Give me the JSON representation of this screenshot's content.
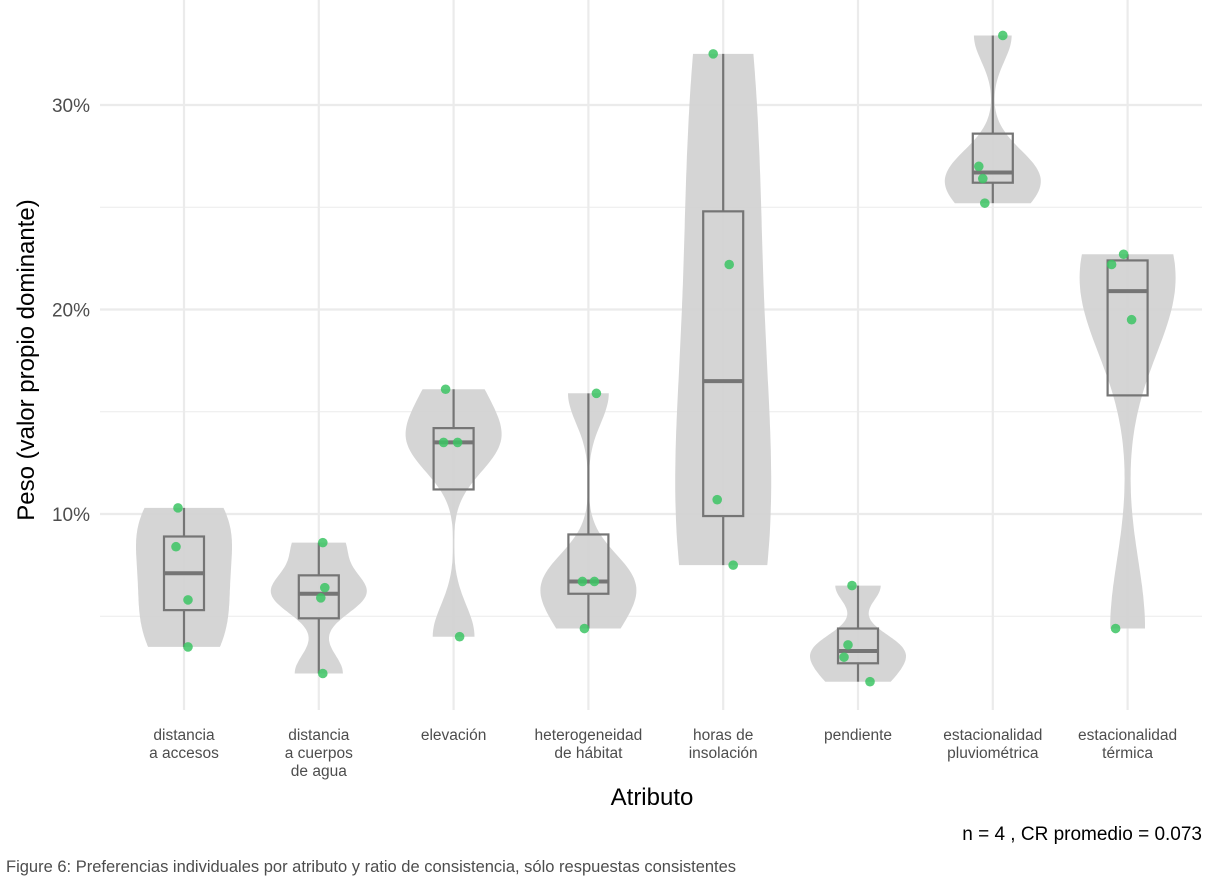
{
  "chart_data": {
    "type": "violin-box-jitter",
    "ylabel": "Peso (valor propio dominante)",
    "xlabel": "Atributo",
    "ylim": [
      0.02,
      0.35
    ],
    "yticks": [
      0.1,
      0.2,
      0.3
    ],
    "ytick_labels": [
      "10%",
      "20%",
      "30%"
    ],
    "grid": true,
    "caption": "n = 4 , CR promedio = 0.073",
    "colors": {
      "violin": "#d3d3d3",
      "box": "#757575",
      "point": "#3cc464",
      "grid": "#ebebeb"
    },
    "categories": [
      {
        "label": [
          "distancia",
          "a accesos"
        ],
        "values": [
          0.103,
          0.084,
          0.058,
          0.035
        ],
        "box": {
          "min": 0.035,
          "q1": 0.053,
          "median": 0.071,
          "q3": 0.089,
          "max": 0.103
        }
      },
      {
        "label": [
          "distancia",
          "a cuerpos",
          "de agua"
        ],
        "values": [
          0.086,
          0.064,
          0.059,
          0.022
        ],
        "box": {
          "min": 0.022,
          "q1": 0.049,
          "median": 0.061,
          "q3": 0.07,
          "max": 0.086
        }
      },
      {
        "label": [
          "elevación"
        ],
        "values": [
          0.161,
          0.135,
          0.135,
          0.04
        ],
        "box": {
          "min": 0.112,
          "q1": 0.112,
          "median": 0.135,
          "q3": 0.142,
          "max": 0.161
        }
      },
      {
        "label": [
          "heterogeneidad",
          "de hábitat"
        ],
        "values": [
          0.159,
          0.067,
          0.067,
          0.044
        ],
        "box": {
          "min": 0.044,
          "q1": 0.061,
          "median": 0.067,
          "q3": 0.09,
          "max": 0.159
        }
      },
      {
        "label": [
          "horas de",
          "insolación"
        ],
        "values": [
          0.325,
          0.222,
          0.107,
          0.075
        ],
        "box": {
          "min": 0.075,
          "q1": 0.099,
          "median": 0.165,
          "q3": 0.248,
          "max": 0.325
        }
      },
      {
        "label": [
          "pendiente"
        ],
        "values": [
          0.065,
          0.036,
          0.03,
          0.018
        ],
        "box": {
          "min": 0.018,
          "q1": 0.027,
          "median": 0.033,
          "q3": 0.044,
          "max": 0.065
        }
      },
      {
        "label": [
          "estacionalidad",
          "pluviométrica"
        ],
        "values": [
          0.334,
          0.27,
          0.264,
          0.252
        ],
        "box": {
          "min": 0.252,
          "q1": 0.262,
          "median": 0.267,
          "q3": 0.286,
          "max": 0.334
        }
      },
      {
        "label": [
          "estacionalidad",
          "térmica"
        ],
        "values": [
          0.227,
          0.222,
          0.195,
          0.044
        ],
        "box": {
          "min": 0.158,
          "q1": 0.158,
          "median": 0.209,
          "q3": 0.224,
          "max": 0.227
        }
      }
    ]
  },
  "figure_caption": "Figure 6: Preferencias individuales por atributo y ratio de consistencia, sólo respuestas consistentes"
}
